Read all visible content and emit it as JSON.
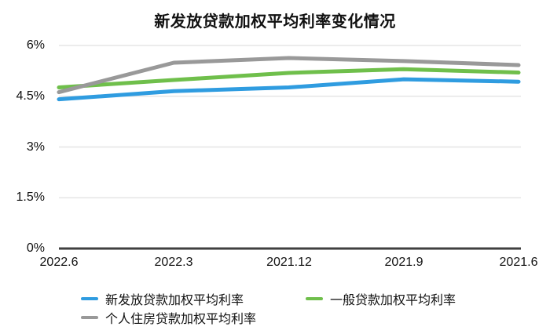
{
  "chart_data": {
    "type": "line",
    "title": "新发放贷款加权平均利率变化情况",
    "categories": [
      "2022.6",
      "2022.3",
      "2021.12",
      "2021.9",
      "2021.6"
    ],
    "series": [
      {
        "name": "新发放贷款加权平均利率",
        "color": "#2f9ce0",
        "values": [
          4.41,
          4.65,
          4.76,
          5.0,
          4.93
        ]
      },
      {
        "name": "一般贷款加权平均利率",
        "color": "#6fbf4b",
        "values": [
          4.76,
          4.98,
          5.19,
          5.3,
          5.2
        ]
      },
      {
        "name": "个人住房贷款加权平均利率",
        "color": "#999999",
        "values": [
          4.62,
          5.49,
          5.63,
          5.54,
          5.42
        ]
      }
    ],
    "ylim": [
      0,
      6
    ],
    "yticks": [
      6,
      4.5,
      3,
      1.5,
      0
    ],
    "ytick_labels": [
      "6%",
      "4.5%",
      "3%",
      "1.5%",
      "0%"
    ],
    "grid": true,
    "grid_color": "#e5e5e5",
    "axis_color": "#404040",
    "legend_position": "bottom",
    "line_width": 5
  }
}
